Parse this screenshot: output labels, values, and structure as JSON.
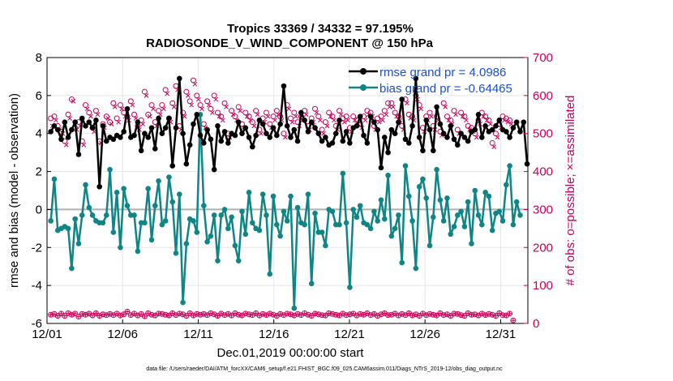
{
  "chart_data": {
    "type": "line",
    "title": "Tropics 33369 / 34332 = 97.195%",
    "subtitle": "RADIOSONDE_V_WIND_COMPONENT @ 150 hPa",
    "xlabel": "Dec.01,2019 00:00:00 start",
    "ylabel": "rmse and bias (model - observation)",
    "y2label": "# of obs: o=possible; ×=assimilated",
    "footnote": "data file: /Users/raeder/DAI/ATM_forcXX/CAM6_setup/f.e21.FHIST_BGC.f09_025.CAM6assim.011/Diags_NTrS_2019-12/obs_diag_output.nc",
    "xlim": [
      0,
      31.8
    ],
    "ylim": [
      -6,
      8
    ],
    "y2lim": [
      0,
      700
    ],
    "x_ticks": [
      0,
      5,
      10,
      15,
      20,
      25,
      30
    ],
    "x_tick_labels": [
      "12/01",
      "12/06",
      "12/11",
      "12/16",
      "12/21",
      "12/26",
      "12/31"
    ],
    "y_ticks": [
      -6,
      -4,
      -2,
      0,
      2,
      4,
      6,
      8
    ],
    "y2_ticks": [
      0,
      100,
      200,
      300,
      400,
      500,
      600,
      700
    ],
    "grid": true,
    "legend_position": "top-right",
    "colors": {
      "rmse": "#000000",
      "bias": "#0f8585",
      "obs": "#c8005a",
      "zero_line": "#b0b0b0",
      "legend_text": "#1a4fd6"
    },
    "series": [
      {
        "name": "rmse grand pr = 4.0986",
        "values": [
          4.1,
          4.4,
          4.2,
          3.7,
          4.6,
          3.8,
          4.2,
          4.6,
          2.9,
          4.8,
          4.4,
          4.6,
          4.3,
          4.7,
          1.2,
          4.4,
          3.6,
          3.8,
          3.7,
          3.9,
          3.8,
          4.1,
          5.3,
          3.8,
          3.9,
          4.6,
          3.1,
          4.0,
          3.8,
          4.3,
          3.2,
          4.8,
          4.0,
          4.3,
          4.8,
          2.3,
          4.3,
          6.9,
          4.0,
          2.4,
          3.4,
          4.5,
          5.0,
          3.9,
          3.5,
          4.2,
          3.7,
          2.1,
          4.4,
          3.6,
          4.1,
          3.5,
          4.0,
          3.9,
          4.6,
          4.0,
          4.3,
          3.8,
          3.3,
          3.9,
          4.7,
          4.5,
          4.0,
          3.8,
          4.3,
          3.9,
          4.5,
          6.5,
          4.4,
          3.8,
          4.2,
          3.6,
          5.1,
          4.7,
          4.1,
          4.6,
          4.3,
          4.0,
          3.6,
          3.8,
          3.4,
          3.5,
          4.0,
          4.7,
          3.6,
          4.1,
          3.5,
          4.3,
          4.4,
          4.9,
          3.9,
          3.5,
          4.9,
          4.6,
          4.2,
          2.2,
          3.8,
          3.0,
          4.2,
          4.0,
          4.6,
          5.8,
          3.7,
          3.5,
          4.4,
          6.9,
          3.8,
          3.1,
          4.7,
          4.2,
          3.1,
          5.4,
          4.5,
          4.0,
          3.8,
          4.4,
          3.7,
          3.4,
          4.0,
          3.8,
          3.6,
          4.1,
          4.2,
          5.0,
          3.8,
          4.4,
          4.1,
          4.2,
          4.4,
          4.7,
          4.2,
          4.1,
          3.8,
          4.3,
          4.6,
          4.1,
          4.6,
          2.4
        ]
      },
      {
        "name": "bias grand pr = -0.64465",
        "values": [
          -0.6,
          1.6,
          -1.1,
          -1.0,
          -0.9,
          -1.0,
          -3.1,
          -0.5,
          -1.8,
          -0.3,
          1.3,
          0.1,
          -0.3,
          -0.6,
          -0.7,
          -0.7,
          -0.3,
          2.1,
          -1.2,
          0.9,
          -2.0,
          1.1,
          0.2,
          -0.3,
          -0.3,
          -2.2,
          -0.7,
          -0.7,
          1.1,
          -1.6,
          0.2,
          1.5,
          -0.8,
          -0.6,
          1.7,
          0.4,
          -2.3,
          0.8,
          -4.9,
          -1.8,
          -0.5,
          -0.6,
          -1.2,
          5.0,
          0.2,
          -1.7,
          -1.4,
          -0.3,
          -2.7,
          -0.3,
          0.0,
          -1.0,
          -0.4,
          -1.9,
          -2.7,
          -0.1,
          -1.3,
          0.9,
          -0.7,
          -1.0,
          -1.1,
          0.8,
          -0.3,
          -3.4,
          0.7,
          -0.8,
          -1.4,
          -0.1,
          -0.6,
          0.7,
          -5.2,
          0.1,
          -0.7,
          -0.8,
          0.8,
          -3.9,
          -0.2,
          -1.2,
          -1.2,
          -1.9,
          0.0,
          -0.1,
          -0.8,
          -0.8,
          1.9,
          -0.7,
          -4.1,
          0.0,
          -0.4,
          0.2,
          -0.7,
          -0.8,
          -1.0,
          -0.1,
          -0.6,
          0.5,
          -0.5,
          1.8,
          -1.4,
          -1.0,
          -0.3,
          -2.8,
          2.3,
          0.7,
          -0.6,
          -3.1,
          1.2,
          1.6,
          0.6,
          -1.9,
          -0.4,
          2.1,
          0.5,
          -0.6,
          0.6,
          -1.3,
          -0.9,
          -0.3,
          -0.1,
          -0.9,
          0.4,
          -1.8,
          1.0,
          -0.3,
          -0.8,
          0.9,
          0.7,
          -1.1,
          -0.2,
          -0.1,
          -0.6,
          1.3,
          2.3,
          -0.8,
          0.4,
          -0.3
        ]
      },
      {
        "name": "obs possible",
        "axis": "right",
        "values": [
          23,
          25,
          20,
          26,
          20,
          27,
          23,
          26,
          18,
          25,
          23,
          26,
          21,
          27,
          20,
          24,
          22,
          25,
          22,
          26,
          21,
          24,
          31,
          22,
          26,
          21,
          25,
          19,
          27,
          23,
          21,
          26,
          25,
          23,
          21,
          27,
          22,
          26,
          24,
          20,
          27,
          21,
          25,
          23,
          25,
          22,
          27,
          24,
          20,
          26,
          22,
          25,
          21,
          27,
          23,
          21,
          26,
          24,
          22,
          27,
          21,
          25,
          22,
          26,
          23,
          20,
          25,
          22,
          26,
          24,
          21,
          25,
          22,
          27,
          23,
          20,
          26,
          24,
          22,
          21,
          27,
          25,
          23,
          21,
          26,
          22,
          24,
          26,
          21,
          25,
          23,
          27,
          22,
          25,
          20,
          24,
          27,
          22,
          23,
          26,
          21,
          25,
          22,
          27,
          21,
          24,
          20,
          26,
          22,
          25,
          23,
          21,
          27,
          22,
          24,
          20,
          26,
          25,
          22,
          20,
          27,
          23,
          24,
          21,
          26,
          22,
          25,
          23,
          20,
          27,
          22,
          21,
          26,
          8
        ]
      },
      {
        "name": "obs possible (upper)",
        "axis": "right",
        "values": [
          540,
          545,
          520,
          505,
          480,
          550,
          590,
          515,
          530,
          480,
          575,
          555,
          515,
          560,
          480,
          525,
          545,
          530,
          580,
          540,
          575,
          555,
          545,
          585,
          550,
          520,
          535,
          610,
          550,
          575,
          530,
          560,
          575,
          615,
          540,
          580,
          625,
          520,
          555,
          610,
          585,
          640,
          600,
          575,
          525,
          585,
          565,
          600,
          555,
          545,
          580,
          500,
          560,
          545,
          570,
          525,
          555,
          545,
          530,
          560,
          510,
          540,
          555,
          525,
          545,
          560,
          545,
          500,
          575,
          540,
          555,
          530,
          545,
          560,
          520,
          540,
          565,
          545,
          510,
          530,
          555,
          545,
          520,
          560,
          540,
          545,
          515,
          545,
          535,
          525,
          545,
          560,
          555,
          520,
          540,
          545,
          560,
          580,
          580,
          555,
          545,
          520,
          590,
          550,
          545,
          600,
          575,
          515,
          545,
          555,
          520,
          545,
          505,
          580,
          545,
          535,
          560,
          510,
          555,
          545,
          520,
          515,
          500,
          535,
          555,
          545,
          535,
          475,
          500,
          525,
          545,
          540,
          535
        ]
      },
      {
        "name": "obs assimilated (upper)",
        "axis": "right",
        "values": [
          520,
          535,
          510,
          500,
          470,
          540,
          585,
          510,
          520,
          470,
          565,
          545,
          505,
          550,
          475,
          515,
          540,
          525,
          570,
          530,
          565,
          545,
          535,
          575,
          540,
          510,
          525,
          600,
          545,
          565,
          520,
          550,
          565,
          605,
          530,
          570,
          615,
          510,
          545,
          600,
          575,
          630,
          590,
          565,
          515,
          575,
          555,
          590,
          545,
          535,
          570,
          490,
          550,
          535,
          560,
          515,
          545,
          535,
          520,
          550,
          500,
          530,
          545,
          515,
          535,
          550,
          535,
          490,
          565,
          530,
          545,
          520,
          535,
          550,
          510,
          530,
          555,
          535,
          500,
          520,
          545,
          535,
          510,
          550,
          530,
          535,
          505,
          535,
          525,
          515,
          535,
          550,
          545,
          510,
          530,
          535,
          550,
          570,
          570,
          545,
          535,
          510,
          580,
          540,
          535,
          590,
          565,
          505,
          535,
          545,
          510,
          535,
          495,
          570,
          535,
          525,
          550,
          500,
          545,
          535,
          510,
          505,
          490,
          525,
          545,
          535,
          525,
          465,
          490,
          515,
          535,
          530,
          525
        ]
      }
    ]
  }
}
